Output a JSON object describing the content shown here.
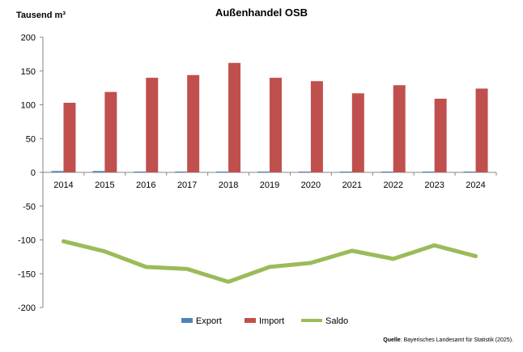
{
  "chart_data": {
    "type": "bar",
    "title": "Außenhandel OSB",
    "ylabel": "Tausend m³",
    "xlabel": "",
    "ylim": [
      -200,
      200
    ],
    "yticks": [
      200,
      150,
      100,
      50,
      0,
      -50,
      -100,
      -150,
      -200
    ],
    "categories": [
      "2014",
      "2015",
      "2016",
      "2017",
      "2018",
      "2019",
      "2020",
      "2021",
      "2022",
      "2023",
      "2024"
    ],
    "series": [
      {
        "name": "Export",
        "kind": "bar",
        "color": "#4f81bd",
        "values": [
          2,
          2,
          1,
          1,
          0.5,
          0.5,
          0.5,
          0.5,
          1,
          1,
          0.5
        ]
      },
      {
        "name": "Import",
        "kind": "bar",
        "color": "#c0504d",
        "values": [
          103,
          119,
          140,
          144,
          162,
          140,
          135,
          117,
          129,
          109,
          124
        ]
      },
      {
        "name": "Saldo",
        "kind": "line",
        "color": "#9bbb59",
        "values": [
          -102,
          -117,
          -140,
          -143,
          -162,
          -140,
          -134,
          -116,
          -128,
          -108,
          -124
        ]
      }
    ],
    "legend_position": "bottom",
    "grid": false
  },
  "source": {
    "label": "Quelle",
    "text": ": Bayerisches Landesamt für Statistik (2025)."
  }
}
